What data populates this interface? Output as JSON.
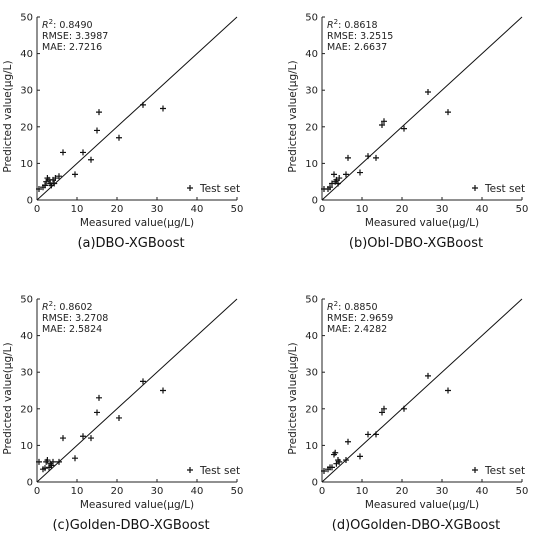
{
  "chart_data": [
    {
      "type": "scatter",
      "panel_caption": "(a)DBO-XGBoost",
      "xlabel": "Measured value(μg/L)",
      "ylabel": "Predicted value(μg/L)",
      "xlim": [
        0,
        50
      ],
      "ylim": [
        0,
        50
      ],
      "xticks": [
        "0",
        "10",
        "20",
        "30",
        "40",
        "50"
      ],
      "yticks": [
        "0",
        "10",
        "20",
        "30",
        "40",
        "50"
      ],
      "metrics": [
        {
          "label": "R",
          "sup": "2",
          "sep": ": ",
          "value": "0.8490"
        },
        {
          "label": "RMSE",
          "sup": "",
          "sep": ": ",
          "value": "3.3987"
        },
        {
          "label": "MAE",
          "sup": "",
          "sep": ": ",
          "value": "2.7216"
        }
      ],
      "legend": "Test set",
      "series": [
        {
          "name": "Test set",
          "marker": "+",
          "points": [
            [
              0.5,
              3
            ],
            [
              1.5,
              3.5
            ],
            [
              2,
              4
            ],
            [
              2.3,
              5
            ],
            [
              2.6,
              6
            ],
            [
              3,
              5.5
            ],
            [
              3.3,
              4.5
            ],
            [
              3.6,
              4
            ],
            [
              4,
              5.5
            ],
            [
              4.3,
              4.5
            ],
            [
              4.6,
              6
            ],
            [
              5.5,
              6.5
            ],
            [
              6.5,
              13
            ],
            [
              9.5,
              7
            ],
            [
              11.5,
              13
            ],
            [
              13.5,
              11
            ],
            [
              15,
              19
            ],
            [
              15.5,
              24
            ],
            [
              20.5,
              17
            ],
            [
              26.5,
              26
            ],
            [
              31.5,
              25
            ]
          ]
        }
      ],
      "reference_line": {
        "from": [
          0,
          0
        ],
        "to": [
          50,
          50
        ]
      }
    },
    {
      "type": "scatter",
      "panel_caption": "(b)Obl-DBO-XGBoost",
      "xlabel": "Measured value(μg/L)",
      "ylabel": "Predicted value(μg/L)",
      "xlim": [
        0,
        50
      ],
      "ylim": [
        0,
        50
      ],
      "xticks": [
        "0",
        "10",
        "20",
        "30",
        "40",
        "50"
      ],
      "yticks": [
        "0",
        "10",
        "20",
        "30",
        "40",
        "50"
      ],
      "metrics": [
        {
          "label": "R",
          "sup": "2",
          "sep": ": ",
          "value": "0.8618"
        },
        {
          "label": "RMSE",
          "sup": "",
          "sep": ": ",
          "value": "3.2515"
        },
        {
          "label": "MAE",
          "sup": "",
          "sep": ": ",
          "value": "2.6637"
        }
      ],
      "legend": "Test set",
      "series": [
        {
          "name": "Test set",
          "marker": "+",
          "points": [
            [
              0.5,
              3
            ],
            [
              1.5,
              3
            ],
            [
              2,
              3.5
            ],
            [
              2.5,
              4.5
            ],
            [
              3,
              7
            ],
            [
              3.3,
              5
            ],
            [
              3.6,
              5.5
            ],
            [
              4,
              4.5
            ],
            [
              4.3,
              6
            ],
            [
              6,
              7
            ],
            [
              6.5,
              11.5
            ],
            [
              9.5,
              7.5
            ],
            [
              11.5,
              12
            ],
            [
              13.5,
              11.5
            ],
            [
              15,
              20.5
            ],
            [
              15.5,
              21.5
            ],
            [
              20.5,
              19.5
            ],
            [
              26.5,
              29.5
            ],
            [
              31.5,
              24
            ]
          ]
        }
      ],
      "reference_line": {
        "from": [
          0,
          0
        ],
        "to": [
          50,
          50
        ]
      }
    },
    {
      "type": "scatter",
      "panel_caption": "(c)Golden-DBO-XGBoost",
      "xlabel": "Measured value(μg/L)",
      "ylabel": "Predicted value(μg/L)",
      "xlim": [
        0,
        50
      ],
      "ylim": [
        0,
        50
      ],
      "xticks": [
        "0",
        "10",
        "20",
        "30",
        "40",
        "50"
      ],
      "yticks": [
        "0",
        "10",
        "20",
        "30",
        "40",
        "50"
      ],
      "metrics": [
        {
          "label": "R",
          "sup": "2",
          "sep": ": ",
          "value": "0.8602"
        },
        {
          "label": "RMSE",
          "sup": "",
          "sep": ": ",
          "value": "3.2708"
        },
        {
          "label": "MAE",
          "sup": "",
          "sep": ": ",
          "value": "2.5824"
        }
      ],
      "legend": "Test set",
      "series": [
        {
          "name": "Test set",
          "marker": "+",
          "points": [
            [
              0.5,
              5.5
            ],
            [
              1.5,
              3.5
            ],
            [
              2,
              3.8
            ],
            [
              2.3,
              5.5
            ],
            [
              2.6,
              6
            ],
            [
              3,
              4
            ],
            [
              3.3,
              5
            ],
            [
              3.6,
              4.5
            ],
            [
              4,
              5.5
            ],
            [
              5.5,
              5.5
            ],
            [
              6.5,
              12
            ],
            [
              9.5,
              6.5
            ],
            [
              11.5,
              12.5
            ],
            [
              13.5,
              12
            ],
            [
              15,
              19
            ],
            [
              15.5,
              23
            ],
            [
              20.5,
              17.5
            ],
            [
              26.5,
              27.5
            ],
            [
              31.5,
              25
            ]
          ]
        }
      ],
      "reference_line": {
        "from": [
          0,
          0
        ],
        "to": [
          50,
          50
        ]
      }
    },
    {
      "type": "scatter",
      "panel_caption": "(d)OGolden-DBO-XGBoost",
      "xlabel": "Measured value(μg/L)",
      "ylabel": "Predicted value(μg/L)",
      "xlim": [
        0,
        50
      ],
      "ylim": [
        0,
        50
      ],
      "xticks": [
        "0",
        "10",
        "20",
        "30",
        "40",
        "50"
      ],
      "yticks": [
        "0",
        "10",
        "20",
        "30",
        "40",
        "50"
      ],
      "metrics": [
        {
          "label": "R",
          "sup": "2",
          "sep": ": ",
          "value": "0.8850"
        },
        {
          "label": "RMSE",
          "sup": "",
          "sep": ": ",
          "value": "2.9659"
        },
        {
          "label": "MAE",
          "sup": "",
          "sep": ": ",
          "value": "2.4282"
        }
      ],
      "legend": "Test set",
      "series": [
        {
          "name": "Test set",
          "marker": "+",
          "points": [
            [
              0.5,
              3
            ],
            [
              1.5,
              3.5
            ],
            [
              2,
              4
            ],
            [
              2.5,
              4
            ],
            [
              3,
              7.5
            ],
            [
              3.3,
              8
            ],
            [
              3.6,
              5
            ],
            [
              4,
              6
            ],
            [
              4.3,
              5.5
            ],
            [
              6,
              6
            ],
            [
              6.5,
              11
            ],
            [
              9.5,
              7
            ],
            [
              11.5,
              13
            ],
            [
              13.5,
              13
            ],
            [
              15,
              19
            ],
            [
              15.5,
              20
            ],
            [
              20.5,
              20
            ],
            [
              26.5,
              29
            ],
            [
              31.5,
              25
            ]
          ]
        }
      ],
      "reference_line": {
        "from": [
          0,
          0
        ],
        "to": [
          50,
          50
        ]
      }
    }
  ]
}
